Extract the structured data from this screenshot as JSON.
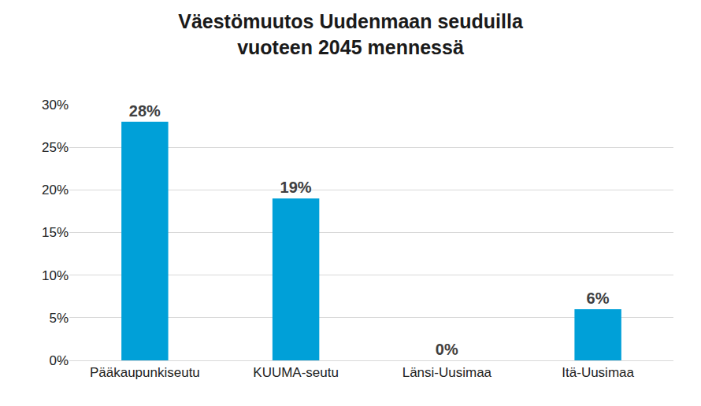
{
  "chart_data": {
    "type": "bar",
    "title": "Väestömuutos Uudenmaan seuduilla\nvuoteen 2045 mennessä",
    "categories": [
      "Pääkaupunkiseutu",
      "KUUMA-seutu",
      "Länsi-Uusimaa",
      "Itä-Uusimaa"
    ],
    "values": [
      28,
      19,
      0,
      6
    ],
    "value_labels": [
      "28%",
      "19%",
      "0%",
      "6%"
    ],
    "data_labels": true,
    "color": "#00a0d8",
    "ylim": [
      0,
      30
    ],
    "yticks": [
      {
        "value": 0,
        "label": "0%"
      },
      {
        "value": 5,
        "label": "5%"
      },
      {
        "value": 10,
        "label": "10%"
      },
      {
        "value": 15,
        "label": "15%"
      },
      {
        "value": 20,
        "label": "20%"
      },
      {
        "value": 25,
        "label": "25%"
      },
      {
        "value": 30,
        "label": "30%"
      }
    ],
    "grid": true
  }
}
